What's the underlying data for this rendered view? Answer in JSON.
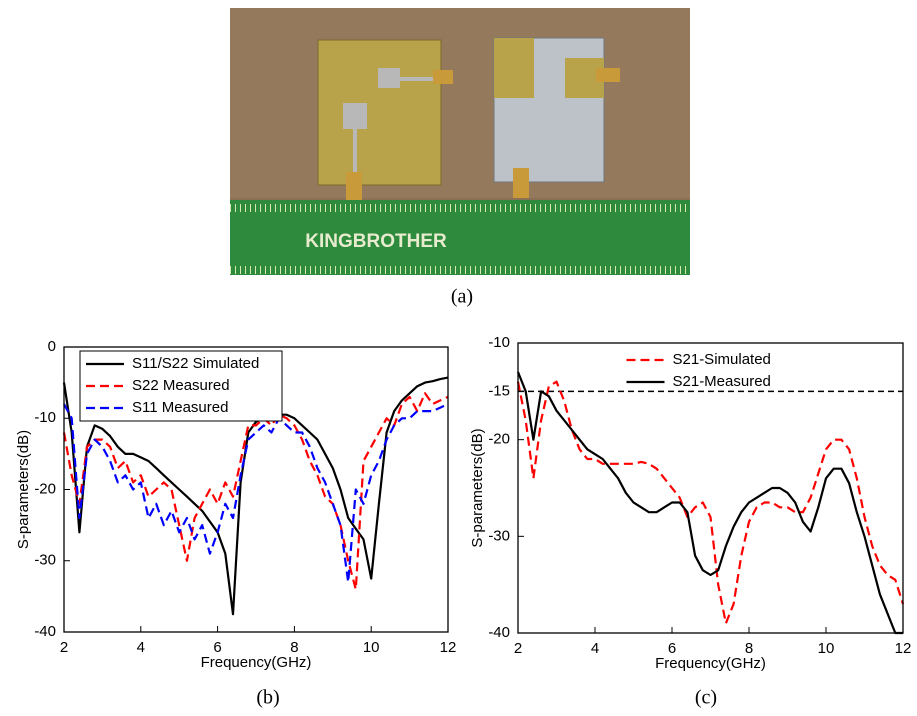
{
  "photo": {
    "brand": "KINGBROTHER"
  },
  "captions": [
    "(a)",
    "(b)",
    "(c)"
  ],
  "chart_data": [
    {
      "type": "line",
      "xlabel": "Frequency(GHz)",
      "ylabel": "S-parameters(dB)",
      "xlim": [
        2,
        12
      ],
      "xticks": [
        2,
        4,
        6,
        8,
        10,
        12
      ],
      "ylim": [
        -40,
        0
      ],
      "yticks": [
        0,
        -10,
        -20,
        -30,
        -40
      ],
      "legend": "upper left",
      "legend_frame": true,
      "x": [
        2.0,
        2.2,
        2.4,
        2.6,
        2.8,
        3.0,
        3.2,
        3.4,
        3.6,
        3.8,
        4.0,
        4.2,
        4.4,
        4.6,
        4.8,
        5.0,
        5.2,
        5.4,
        5.6,
        5.8,
        6.0,
        6.2,
        6.4,
        6.6,
        6.8,
        7.0,
        7.2,
        7.4,
        7.6,
        7.8,
        8.0,
        8.2,
        8.4,
        8.6,
        8.8,
        9.0,
        9.2,
        9.4,
        9.6,
        9.8,
        10.0,
        10.2,
        10.4,
        10.6,
        10.8,
        11.0,
        11.2,
        11.4,
        11.6,
        11.8,
        12.0
      ],
      "series": [
        {
          "name": "S11/S22 Simulated",
          "color": "#000000",
          "line_style": "solid",
          "values": [
            -5,
            -12,
            -26,
            -14,
            -11,
            -11.5,
            -12.5,
            -14,
            -15,
            -15,
            -15.5,
            -16,
            -17,
            -18,
            -19,
            -20,
            -21,
            -22,
            -23,
            -24.5,
            -26,
            -29,
            -37.5,
            -19,
            -12,
            -10.5,
            -10,
            -9.8,
            -9.5,
            -9.5,
            -10,
            -11,
            -12,
            -13,
            -15,
            -17,
            -20,
            -24,
            -25.5,
            -27,
            -32.5,
            -22,
            -12,
            -9,
            -7.5,
            -6.5,
            -5.5,
            -5,
            -4.8,
            -4.5,
            -4.3
          ]
        },
        {
          "name": "S22 Measured",
          "color": "#ff0000",
          "line_style": "dashed",
          "values": [
            -12,
            -18,
            -22,
            -14,
            -13,
            -13,
            -14,
            -17,
            -16,
            -19,
            -18,
            -21,
            -20,
            -19,
            -20,
            -25,
            -30,
            -24,
            -22,
            -20,
            -22,
            -19,
            -21,
            -16,
            -11,
            -11,
            -10,
            -11,
            -9.5,
            -10,
            -11,
            -13,
            -16,
            -18,
            -21,
            -22,
            -25,
            -30,
            -34,
            -16,
            -14,
            -12,
            -10,
            -11,
            -8,
            -7,
            -9,
            -6.5,
            -8,
            -7.5,
            -7
          ]
        },
        {
          "name": "S11 Measured",
          "color": "#0000ff",
          "line_style": "dashed",
          "values": [
            -8,
            -10,
            -24,
            -15,
            -13,
            -14,
            -16,
            -19,
            -18,
            -20,
            -19,
            -24,
            -22,
            -25,
            -23,
            -26,
            -24,
            -27,
            -25,
            -29,
            -26,
            -22,
            -24,
            -18,
            -13,
            -12,
            -11,
            -12,
            -10,
            -11,
            -12,
            -12,
            -14,
            -17,
            -19,
            -22,
            -25,
            -33,
            -20,
            -22,
            -18,
            -16,
            -13,
            -11,
            -10,
            -10,
            -9,
            -9,
            -9,
            -8.5,
            -8
          ]
        }
      ]
    },
    {
      "type": "line",
      "xlabel": "Frequency(GHz)",
      "ylabel": "S-parameters(dB)",
      "xlim": [
        2,
        12
      ],
      "xticks": [
        2,
        4,
        6,
        8,
        10,
        12
      ],
      "ylim": [
        -40,
        -10
      ],
      "yticks": [
        -10,
        -15,
        -20,
        -30,
        -40
      ],
      "legend": "upper center",
      "legend_frame": false,
      "reference_line": -15,
      "x": [
        2.0,
        2.2,
        2.4,
        2.6,
        2.8,
        3.0,
        3.2,
        3.4,
        3.6,
        3.8,
        4.0,
        4.2,
        4.4,
        4.6,
        4.8,
        5.0,
        5.2,
        5.4,
        5.6,
        5.8,
        6.0,
        6.2,
        6.4,
        6.6,
        6.8,
        7.0,
        7.2,
        7.4,
        7.6,
        7.8,
        8.0,
        8.2,
        8.4,
        8.6,
        8.8,
        9.0,
        9.2,
        9.4,
        9.6,
        9.8,
        10.0,
        10.2,
        10.4,
        10.6,
        10.8,
        11.0,
        11.2,
        11.4,
        11.6,
        11.8,
        12.0
      ],
      "series": [
        {
          "name": "S21-Simulated",
          "color": "#ff0000",
          "line_style": "dashed",
          "values": [
            -14,
            -18,
            -24,
            -18,
            -14.5,
            -14,
            -16,
            -19,
            -21,
            -22,
            -22,
            -22.5,
            -22.5,
            -22.5,
            -22.5,
            -22.5,
            -22.3,
            -22.5,
            -23,
            -24,
            -25,
            -26,
            -28,
            -27,
            -26.5,
            -28,
            -35,
            -39,
            -37,
            -32,
            -28.5,
            -27,
            -26.5,
            -26.5,
            -27,
            -27,
            -27.5,
            -27.5,
            -26,
            -23.5,
            -21,
            -20,
            -20,
            -21,
            -24,
            -28,
            -31,
            -33,
            -34,
            -34.5,
            -37
          ]
        },
        {
          "name": "S21-Measured",
          "color": "#000000",
          "line_style": "solid",
          "values": [
            -13,
            -15,
            -20,
            -15,
            -15.5,
            -17,
            -18,
            -19,
            -20,
            -21,
            -21.5,
            -22,
            -23,
            -24,
            -25.5,
            -26.5,
            -27,
            -27.5,
            -27.5,
            -27,
            -26.5,
            -26.5,
            -27.5,
            -32,
            -33.5,
            -34,
            -33.5,
            -31,
            -29,
            -27.5,
            -26.5,
            -26,
            -25.5,
            -25,
            -25,
            -25.5,
            -26.5,
            -28.5,
            -29.5,
            -27,
            -24,
            -23,
            -23,
            -24.5,
            -27.5,
            -30,
            -33,
            -36,
            -38,
            -40,
            -40
          ]
        }
      ]
    }
  ]
}
